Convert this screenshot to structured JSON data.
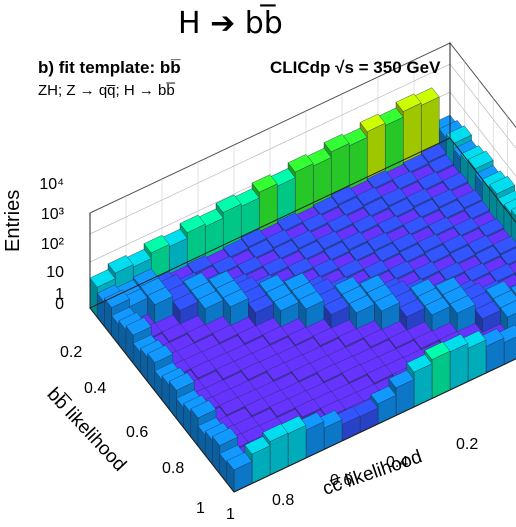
{
  "title": "H ➔ bb̅",
  "chart_data": {
    "type": "heatmap",
    "panel_label": "b) fit template: bb̅",
    "process_label": "ZH; Z → qq̅; H → bb̅",
    "collaboration_label": "CLICdp  √s = 350 GeV",
    "xlabel": "cc̅ likelihood",
    "ylabel": "bb̅ likelihood",
    "zlabel": "Entries",
    "z_scale": "log",
    "x_ticks": [
      "0.2",
      "0.4",
      "0.6",
      "0.8",
      "1"
    ],
    "y_ticks": [
      "0.2",
      "0.4",
      "0.6",
      "0.8",
      "1"
    ],
    "z_ticks": [
      "0",
      "1",
      "10",
      "10²",
      "10³",
      "10⁴"
    ],
    "palette": [
      "#6633ff",
      "#3355ff",
      "#1199ff",
      "#00ddee",
      "#00ffaa",
      "#33ff33",
      "#ccff00",
      "#ffcc00",
      "#ff5500",
      "#ee0000"
    ]
  }
}
